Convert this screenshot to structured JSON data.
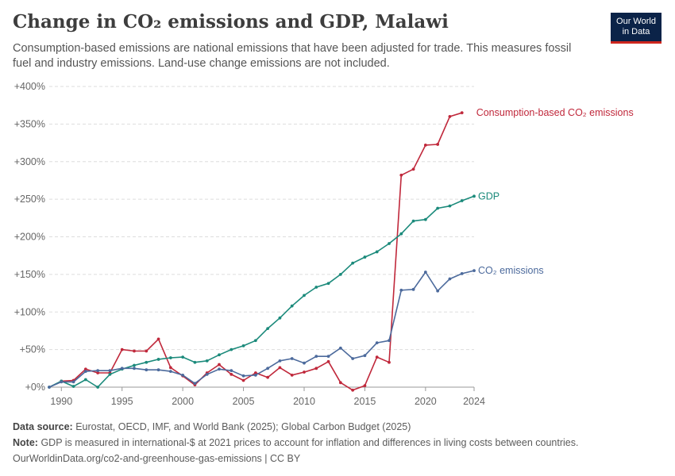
{
  "header": {
    "title": "Change in CO₂ emissions and GDP, Malawi",
    "subtitle": "Consumption-based emissions are national emissions that have been adjusted for trade. This measures fossil fuel and industry emissions. Land-use change emissions are not included."
  },
  "logo": {
    "line1": "Our World",
    "line2": "in Data"
  },
  "footer": {
    "source_label": "Data source:",
    "source_text": "Eurostat, OECD, IMF, and World Bank (2025); Global Carbon Budget (2025)",
    "note_label": "Note:",
    "note_text": "GDP is measured in international-$ at 2021 prices to account for inflation and differences in living costs between countries.",
    "url": "OurWorldinData.org/co2-and-greenhouse-gas-emissions | CC BY"
  },
  "chart_data": {
    "type": "line",
    "x_range": [
      1989,
      2024
    ],
    "ylim": [
      0,
      400
    ],
    "y_ticks": [
      0,
      50,
      100,
      150,
      200,
      250,
      300,
      350,
      400
    ],
    "y_tick_labels": [
      "+0%",
      "+50%",
      "+100%",
      "+150%",
      "+200%",
      "+250%",
      "+300%",
      "+350%",
      "+400%"
    ],
    "x_ticks": [
      1990,
      1995,
      2000,
      2005,
      2010,
      2015,
      2020,
      2024
    ],
    "x_tick_labels": [
      "1990",
      "1995",
      "2000",
      "2005",
      "2010",
      "2015",
      "2020",
      "2024"
    ],
    "grid": "horizontal dashed",
    "legend": "inline labels at line ends",
    "series": [
      {
        "name": "Consumption-based CO₂ emissions",
        "color": "#c0283b",
        "x": [
          1990,
          1991,
          1992,
          1993,
          1994,
          1995,
          1996,
          1997,
          1998,
          1999,
          2000,
          2001,
          2002,
          2003,
          2004,
          2005,
          2006,
          2007,
          2008,
          2009,
          2010,
          2011,
          2012,
          2013,
          2014,
          2015,
          2016,
          2017,
          2018,
          2019,
          2020,
          2021,
          2022,
          2023
        ],
        "values": [
          8,
          9,
          24,
          19,
          19,
          50,
          48,
          48,
          64,
          26,
          15,
          3,
          19,
          30,
          17,
          9,
          19,
          13,
          26,
          16,
          20,
          25,
          34,
          6,
          -4,
          2,
          40,
          33,
          282,
          290,
          322,
          323,
          360,
          365
        ]
      },
      {
        "name": "GDP",
        "color": "#1b8a7b",
        "x": [
          1989,
          1990,
          1991,
          1992,
          1993,
          1994,
          1995,
          1996,
          1997,
          1998,
          1999,
          2000,
          2001,
          2002,
          2003,
          2004,
          2005,
          2006,
          2007,
          2008,
          2009,
          2010,
          2011,
          2012,
          2013,
          2014,
          2015,
          2016,
          2017,
          2018,
          2019,
          2020,
          2021,
          2022,
          2023,
          2024
        ],
        "values": [
          0,
          8,
          1,
          10,
          0,
          17,
          24,
          29,
          33,
          37,
          39,
          40,
          33,
          35,
          43,
          50,
          55,
          62,
          78,
          92,
          108,
          122,
          133,
          138,
          150,
          165,
          173,
          180,
          191,
          204,
          221,
          223,
          238,
          241,
          248,
          254
        ]
      },
      {
        "name": "CO₂ emissions",
        "color": "#4c6a9c",
        "x": [
          1989,
          1990,
          1991,
          1992,
          1993,
          1994,
          1995,
          1996,
          1997,
          1998,
          1999,
          2000,
          2001,
          2002,
          2003,
          2004,
          2005,
          2006,
          2007,
          2008,
          2009,
          2010,
          2011,
          2012,
          2013,
          2014,
          2015,
          2016,
          2017,
          2018,
          2019,
          2020,
          2021,
          2022,
          2023,
          2024
        ],
        "values": [
          0,
          7,
          7,
          21,
          22,
          22,
          25,
          25,
          23,
          23,
          21,
          16,
          5,
          17,
          24,
          22,
          15,
          16,
          25,
          35,
          38,
          32,
          41,
          41,
          52,
          38,
          42,
          59,
          62,
          129,
          130,
          153,
          128,
          144,
          151,
          155
        ]
      }
    ]
  }
}
